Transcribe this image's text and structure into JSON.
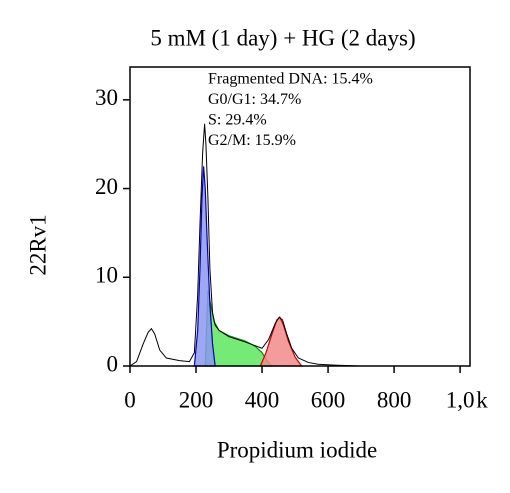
{
  "chart_data": {
    "type": "line",
    "title": "5 mM (1 day) + HG (2 days)",
    "xlabel": "Propidium iodide",
    "ylabel": "22Rv1",
    "x_unit": "k",
    "annotations": [
      "Fragmented DNA: 15.4%",
      "G0/G1: 34.7%",
      "S: 29.4%",
      "G2/M: 15.9%"
    ],
    "xlim": [
      0,
      1030
    ],
    "ylim": [
      0,
      33.7
    ],
    "xticks": [
      0,
      200,
      400,
      600,
      800,
      {
        "value": 1000,
        "label": "1,0"
      }
    ],
    "yticks": [
      0,
      10,
      20,
      30
    ],
    "outline": {
      "color": "#000000",
      "x": [
        0,
        20,
        40,
        55,
        65,
        75,
        90,
        110,
        150,
        180,
        195,
        205,
        212,
        220,
        226,
        230,
        236,
        242,
        250,
        258,
        270,
        300,
        350,
        400,
        420,
        440,
        452,
        462,
        475,
        490,
        510,
        540,
        570,
        620,
        700
      ],
      "values": [
        0,
        0.5,
        2.5,
        3.8,
        4.2,
        3.6,
        1.8,
        0.9,
        0.6,
        0.5,
        1.5,
        8,
        16,
        24,
        27.3,
        25,
        19,
        11,
        6,
        4.6,
        4,
        3.3,
        2.7,
        2,
        3,
        4.8,
        5.5,
        5.2,
        3.6,
        2,
        0.9,
        0.4,
        0.2,
        0.1,
        0
      ]
    },
    "fills": [
      {
        "color": "#5ee65e",
        "edge_color": "#0a8a0a",
        "x": [
          228,
          236,
          244,
          255,
          270,
          300,
          350,
          380,
          400,
          415,
          430
        ],
        "values": [
          0,
          8.5,
          7,
          5,
          4,
          3.4,
          2.8,
          2.2,
          1.5,
          0.6,
          0
        ]
      },
      {
        "color": "#8c98f2",
        "edge_color": "#0000b4",
        "x": [
          195,
          205,
          212,
          218,
          223,
          228,
          234,
          242,
          250,
          258
        ],
        "values": [
          0,
          4,
          11,
          19,
          22.5,
          20,
          14,
          7,
          2.5,
          0
        ]
      },
      {
        "color": "#f28a8a",
        "edge_color": "#c80000",
        "x": [
          395,
          412,
          430,
          445,
          454,
          465,
          480,
          500,
          520
        ],
        "values": [
          0,
          1.5,
          3.6,
          5.2,
          5.5,
          4.6,
          2.8,
          1,
          0
        ]
      }
    ]
  }
}
